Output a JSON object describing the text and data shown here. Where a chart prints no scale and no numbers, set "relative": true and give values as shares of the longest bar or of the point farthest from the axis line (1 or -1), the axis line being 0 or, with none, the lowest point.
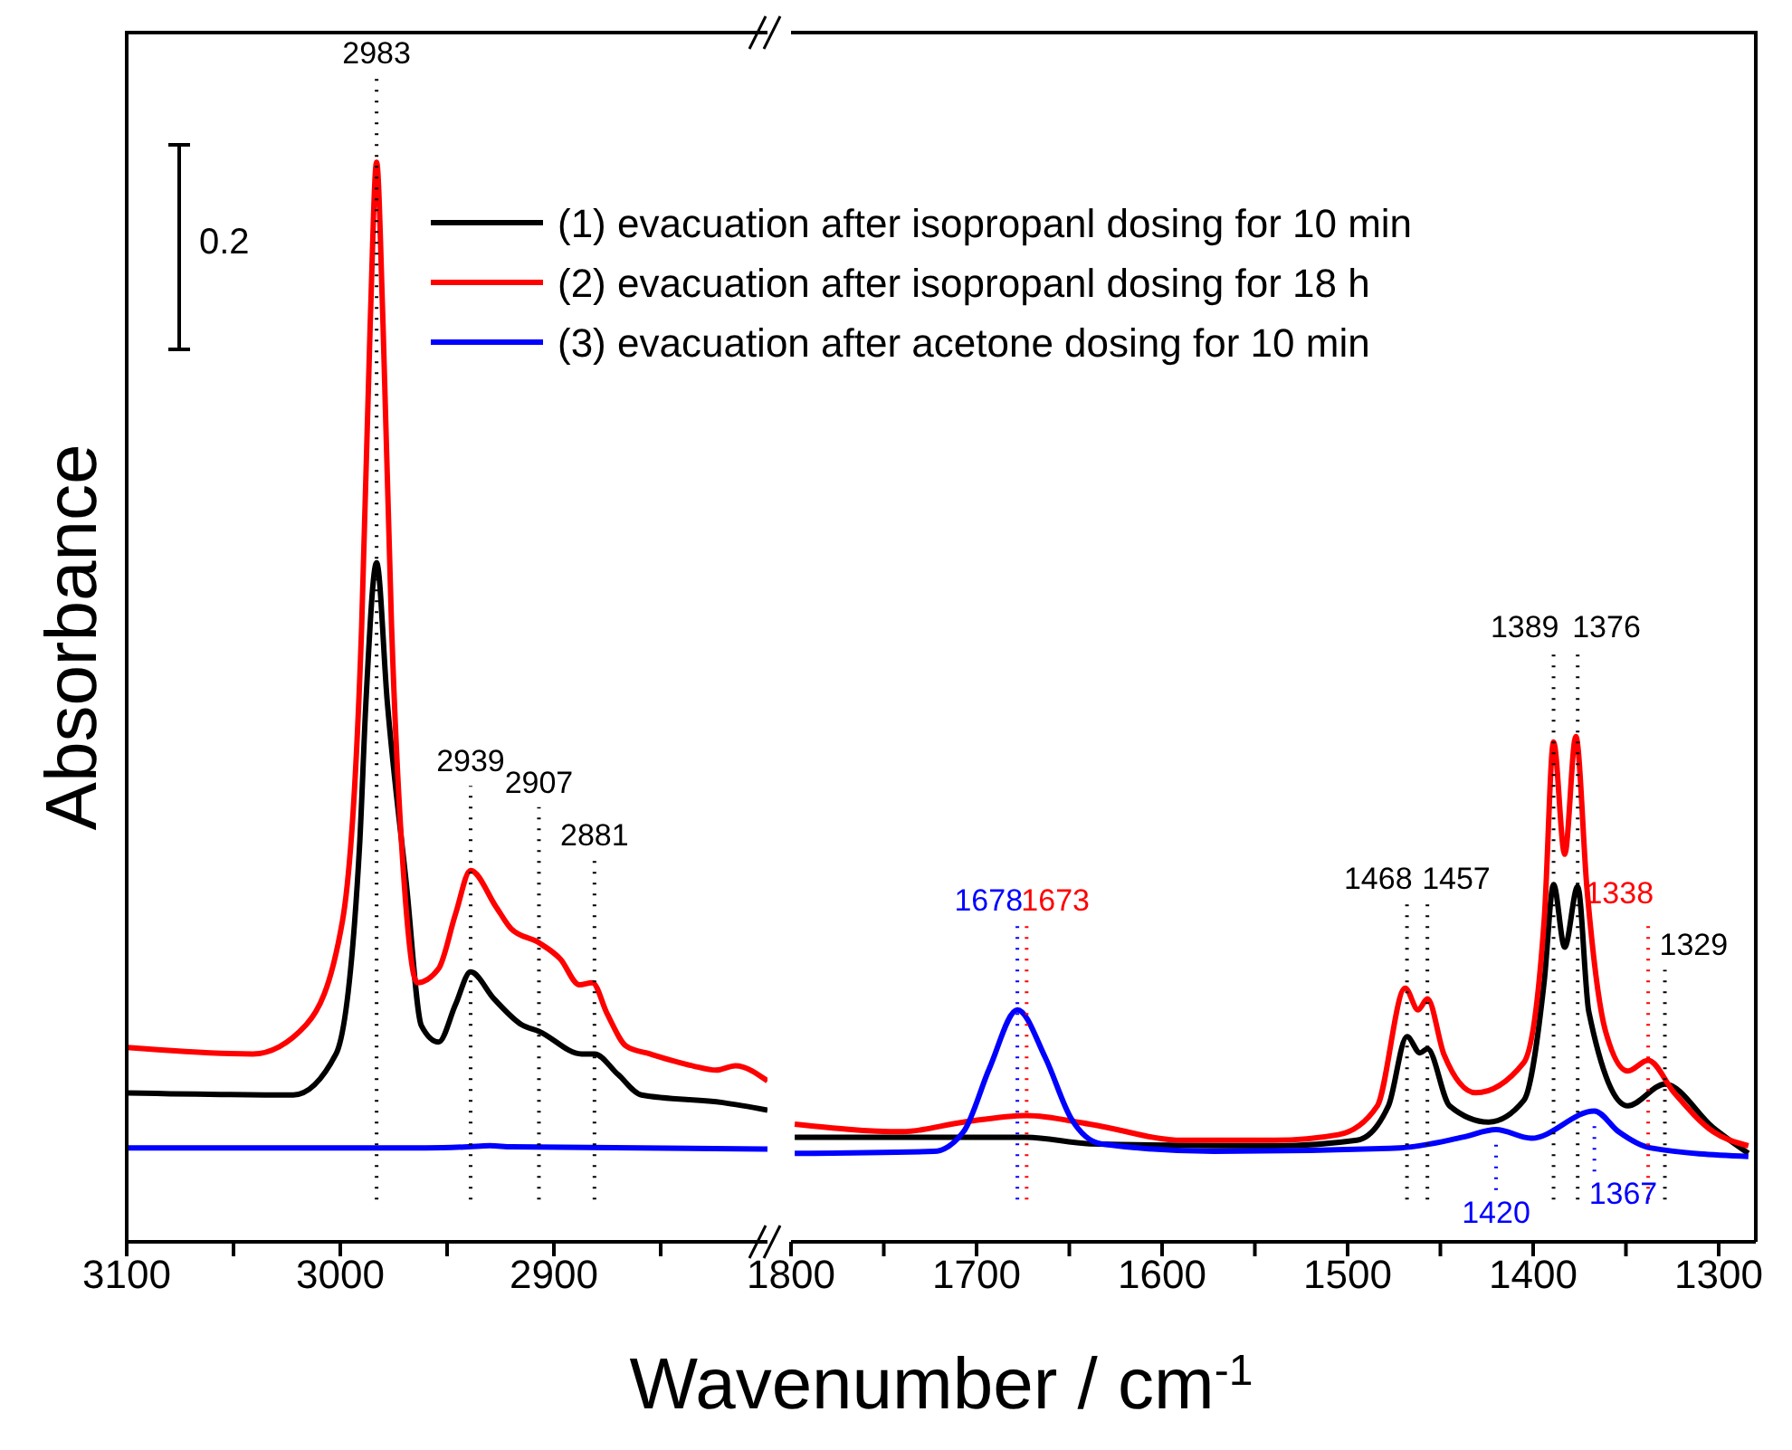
{
  "chart_data": [
    {
      "type": "line",
      "ylabel": "Absorbance",
      "xlabel": "Wavenumber / cm$^{-1}$",
      "relative": true,
      "legend": "top right",
      "grid": false,
      "line_style": "solid",
      "marker": "none",
      "xlim": [
        3100,
        2800
      ],
      "xticks": [
        3100,
        {
          "value": 3050,
          "label": null
        },
        3000,
        {
          "value": 2950,
          "label": null
        },
        2900,
        {
          "value": 2850,
          "label": null
        }
      ],
      "series": [
        {
          "name": "(1) evacuation after isopropanl dosing for 10 min",
          "color": "#000000",
          "x": [
            3100,
            3022,
            3002,
            2991,
            2988,
            2983,
            2978,
            2969,
            2962,
            2954,
            2946,
            2939,
            2928,
            2915,
            2907,
            2887,
            2881,
            2870,
            2859,
            2821,
            2800
          ],
          "values": [
            0.138,
            0.136,
            0.174,
            0.366,
            0.5,
            0.629,
            0.5,
            0.33,
            0.2,
            0.185,
            0.22,
            0.25,
            0.225,
            0.201,
            0.195,
            0.174,
            0.174,
            0.155,
            0.136,
            0.129,
            0.122
          ]
        },
        {
          "name": "(2) evacuation after isopropanl dosing for 18 h",
          "color": "#ff0000",
          "x": [
            3100,
            3041,
            3016,
            2999,
            2990,
            2986,
            2983,
            2980,
            2976,
            2970,
            2964,
            2954,
            2946,
            2939,
            2927,
            2920,
            2907,
            2897,
            2888,
            2882,
            2875,
            2866,
            2855,
            2835,
            2824,
            2815,
            2800
          ],
          "values": [
            0.18,
            0.174,
            0.201,
            0.297,
            0.57,
            0.85,
            1,
            0.85,
            0.57,
            0.33,
            0.24,
            0.253,
            0.304,
            0.344,
            0.31,
            0.29,
            0.277,
            0.262,
            0.238,
            0.24,
            0.211,
            0.181,
            0.174,
            0.163,
            0.159,
            0.163,
            0.149
          ]
        },
        {
          "name": "(3) evacuation after acetone dosing for 10 min",
          "color": "#0000ff",
          "x": [
            3100,
            2960,
            2940,
            2930,
            2920,
            2800
          ],
          "values": [
            0.087,
            0.087,
            0.088,
            0.089,
            0.088,
            0.086
          ]
        }
      ],
      "annotations": [
        "0.2"
      ],
      "ref_lines": [
        {
          "axis": "x",
          "value": 2983,
          "label": "2983",
          "color": "#000000",
          "line_style": "dotted"
        },
        {
          "axis": "x",
          "value": 2939,
          "label": "2939",
          "color": "#000000",
          "line_style": "dotted"
        },
        {
          "axis": "x",
          "value": 2907,
          "label": "2907",
          "color": "#000000",
          "line_style": "dotted"
        },
        {
          "axis": "x",
          "value": 2881,
          "label": "2881",
          "color": "#000000",
          "line_style": "dotted"
        }
      ]
    },
    {
      "type": "line",
      "relative": true,
      "grid": false,
      "line_style": "solid",
      "marker": "none",
      "xlim": [
        1800,
        1280
      ],
      "xticks": [
        1800,
        {
          "value": 1750,
          "label": null
        },
        1700,
        {
          "value": 1650,
          "label": null
        },
        1600,
        {
          "value": 1550,
          "label": null
        },
        1500,
        {
          "value": 1450,
          "label": null
        },
        1400,
        {
          "value": 1350,
          "label": null
        },
        1300
      ],
      "series": [
        {
          "color": "#000000",
          "x": [
            1798,
            1673,
            1639,
            1539,
            1495,
            1478,
            1468,
            1461,
            1457,
            1445,
            1424,
            1405,
            1394,
            1389,
            1383,
            1376,
            1370,
            1349,
            1329,
            1303,
            1284
          ],
          "values": [
            0.207,
            0.207,
            0.194,
            0.19,
            0.201,
            0.269,
            0.406,
            0.374,
            0.382,
            0.269,
            0.237,
            0.28,
            0.517,
            0.707,
            0.583,
            0.703,
            0.455,
            0.269,
            0.312,
            0.226,
            0.175
          ]
        },
        {
          "color": "#ff0000",
          "x": [
            1798,
            1740,
            1707,
            1673,
            1639,
            1589,
            1539,
            1505,
            1484,
            1469,
            1462,
            1457,
            1448,
            1431,
            1405,
            1394,
            1389,
            1383,
            1377,
            1371,
            1361,
            1349,
            1338,
            1324,
            1303,
            1284
          ],
          "values": [
            0.233,
            0.218,
            0.237,
            0.25,
            0.233,
            0.201,
            0.201,
            0.212,
            0.269,
            0.502,
            0.459,
            0.481,
            0.37,
            0.295,
            0.355,
            0.639,
            0.989,
            0.767,
            1,
            0.699,
            0.417,
            0.338,
            0.359,
            0.295,
            0.218,
            0.19
          ]
        },
        {
          "color": "#0000ff",
          "x": [
            1798,
            1723,
            1707,
            1693,
            1678,
            1663,
            1649,
            1633,
            1572,
            1472,
            1438,
            1420,
            1401,
            1367,
            1354,
            1337,
            1284
          ],
          "values": [
            0.175,
            0.179,
            0.218,
            0.344,
            0.459,
            0.365,
            0.244,
            0.194,
            0.179,
            0.186,
            0.207,
            0.222,
            0.205,
            0.259,
            0.218,
            0.186,
            0.169
          ]
        }
      ],
      "ref_lines": [
        {
          "axis": "x",
          "value": 1673,
          "label": "1673",
          "color": "#ff0000",
          "line_style": "dotted"
        },
        {
          "axis": "x",
          "value": 1678,
          "label": "1678",
          "color": "#0000ff",
          "line_style": "dotted"
        },
        {
          "axis": "x",
          "value": 1468,
          "label": "1468",
          "color": "#000000",
          "line_style": "dotted"
        },
        {
          "axis": "x",
          "value": 1457,
          "label": "1457",
          "color": "#000000",
          "line_style": "dotted"
        },
        {
          "axis": "x",
          "value": 1389,
          "label": "1389",
          "color": "#000000",
          "line_style": "dotted"
        },
        {
          "axis": "x",
          "value": 1376,
          "label": "1376",
          "color": "#000000",
          "line_style": "dotted"
        },
        {
          "axis": "x",
          "value": 1338,
          "label": "1338",
          "color": "#ff0000",
          "line_style": "dotted"
        },
        {
          "axis": "x",
          "value": 1329,
          "label": "1329",
          "color": "#000000",
          "line_style": "dotted"
        },
        {
          "axis": "x",
          "value": 1420,
          "label": "1420",
          "color": "#0000ff",
          "line_style": "dotted"
        },
        {
          "axis": "x",
          "value": 1367,
          "label": "1367",
          "color": "#0000ff",
          "line_style": "dotted"
        }
      ]
    }
  ]
}
